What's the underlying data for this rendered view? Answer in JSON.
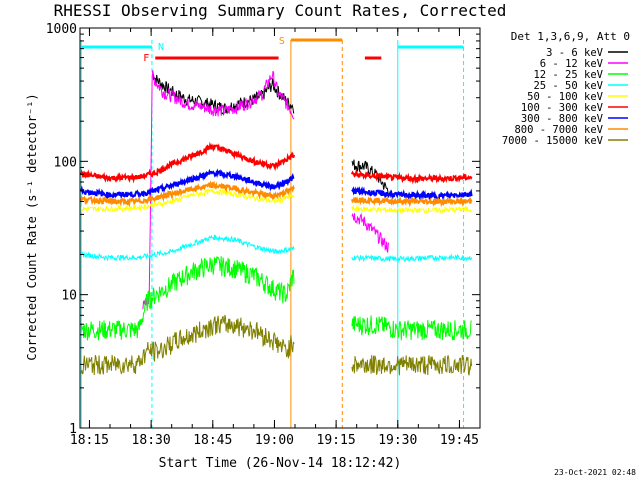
{
  "chart_data": {
    "type": "line",
    "title": "RHESSI Observing Summary Count Rates, Corrected",
    "xlabel": "Start Time (26-Nov-14 18:12:42)",
    "ylabel": "Corrected Count Rate (s⁻¹ detector⁻¹)",
    "x_range_min": [
      12.7,
      78
    ],
    "x_ticks": [
      {
        "v": 15,
        "label": "18:15"
      },
      {
        "v": 30,
        "label": "18:30"
      },
      {
        "v": 45,
        "label": "18:45"
      },
      {
        "v": 60,
        "label": "19:00"
      },
      {
        "v": 75,
        "label": "19:15"
      },
      {
        "v": 90,
        "label": "19:30"
      },
      {
        "v": 105,
        "label": "19:45"
      }
    ],
    "y_scale": "log",
    "y_range": [
      1,
      1000
    ],
    "y_ticks": [
      {
        "v": 1,
        "label": "1"
      },
      {
        "v": 10,
        "label": "10"
      },
      {
        "v": 100,
        "label": "100"
      },
      {
        "v": 1000,
        "label": "1000"
      }
    ],
    "legend_header": "Det 1,3,6,9, Att 0",
    "timestamp": "23-Oct-2021 02:48",
    "series": [
      {
        "name": "3 - 6 keV",
        "color": "#000000",
        "x": [
          30.3,
          31,
          33,
          36,
          39,
          42,
          45,
          48,
          51,
          54,
          57,
          59.5,
          61,
          63,
          64.5,
          79,
          82,
          85,
          88
        ],
        "y": [
          470,
          420,
          370,
          320,
          290,
          280,
          265,
          250,
          270,
          285,
          310,
          380,
          330,
          280,
          260,
          95,
          92,
          78,
          58
        ]
      },
      {
        "name": "6 - 12 keV",
        "color": "#ff00ff",
        "x": [
          28,
          29.5,
          30.3,
          31,
          33,
          36,
          39,
          42,
          45,
          48,
          51,
          54,
          57,
          59.5,
          61,
          63,
          64.5,
          79,
          82,
          85,
          88
        ],
        "y": [
          8,
          9,
          460,
          400,
          330,
          300,
          270,
          260,
          245,
          240,
          255,
          280,
          320,
          450,
          320,
          270,
          230,
          40,
          35,
          28,
          22
        ]
      },
      {
        "name": "12 - 25 keV",
        "color": "#00ff00",
        "x": [
          13,
          20,
          27,
          29,
          31,
          35,
          40,
          45,
          50,
          55,
          60,
          63,
          64.5,
          79,
          85,
          90,
          95,
          100,
          105,
          108
        ],
        "y": [
          5.5,
          5.5,
          5.5,
          9,
          10,
          12,
          15,
          17,
          16,
          14,
          11,
          10,
          14,
          6,
          6,
          5.5,
          5.5,
          5.5,
          5.5,
          5.5
        ]
      },
      {
        "name": "25 - 50 keV",
        "color": "#00ffff",
        "x": [
          13,
          20,
          27,
          31,
          35,
          40,
          45,
          50,
          55,
          60,
          64.5,
          79,
          90,
          100,
          108
        ],
        "y": [
          20,
          19,
          19,
          20,
          21,
          24,
          27,
          26,
          23,
          21,
          22,
          19,
          18.5,
          19,
          19
        ]
      },
      {
        "name": "50 - 100 keV",
        "color": "#ffff00",
        "x": [
          13,
          20,
          27,
          31,
          35,
          40,
          45,
          50,
          55,
          60,
          64.5,
          79,
          90,
          100,
          108
        ],
        "y": [
          44,
          44,
          45,
          47,
          50,
          56,
          60,
          57,
          53,
          50,
          55,
          44,
          43,
          43,
          44
        ]
      },
      {
        "name": "100 - 300 keV",
        "color": "#ff0000",
        "x": [
          13,
          20,
          27,
          31,
          35,
          40,
          45,
          50,
          55,
          60,
          64.5,
          79,
          90,
          100,
          108
        ],
        "y": [
          80,
          75,
          76,
          82,
          95,
          110,
          130,
          115,
          100,
          92,
          110,
          80,
          75,
          74,
          76
        ]
      },
      {
        "name": "300 - 800 keV",
        "color": "#0000ff",
        "x": [
          13,
          20,
          27,
          31,
          35,
          40,
          45,
          50,
          55,
          60,
          64.5,
          79,
          90,
          100,
          108
        ],
        "y": [
          60,
          56,
          57,
          60,
          66,
          74,
          82,
          78,
          70,
          64,
          75,
          60,
          56,
          55,
          57
        ]
      },
      {
        "name": "800 - 7000 keV",
        "color": "#ff8c00",
        "x": [
          13,
          20,
          27,
          31,
          35,
          40,
          45,
          50,
          55,
          60,
          64.5,
          79,
          90,
          100,
          108
        ],
        "y": [
          52,
          50,
          50,
          53,
          57,
          62,
          66,
          63,
          58,
          55,
          62,
          52,
          50,
          50,
          50
        ]
      },
      {
        "name": "7000 - 15000 keV",
        "color": "#808000",
        "x": [
          13,
          20,
          27,
          29,
          32,
          36,
          40,
          45,
          50,
          55,
          60,
          63,
          64.5,
          79,
          85,
          90,
          95,
          100,
          105,
          108
        ],
        "y": [
          3,
          3,
          3.1,
          3.8,
          3.8,
          4.5,
          5,
          6,
          6,
          5.5,
          4.5,
          3.8,
          4.5,
          3,
          3,
          3,
          3,
          3,
          3,
          3
        ]
      }
    ],
    "annotations": [
      {
        "label": "N",
        "color": "#00ffff"
      },
      {
        "label": "F",
        "color": "#ff0000"
      },
      {
        "label": "S",
        "color": "#ff8c00"
      }
    ],
    "night_start_times": [
      13,
      90
    ],
    "night_end_times": [
      30.2,
      106
    ],
    "flare_intervals": [
      [
        31,
        61
      ],
      [
        82,
        86
      ]
    ],
    "saa_intervals": [
      [
        64,
        76.5
      ]
    ],
    "data_gap": [
      64.8,
      78.8
    ]
  }
}
